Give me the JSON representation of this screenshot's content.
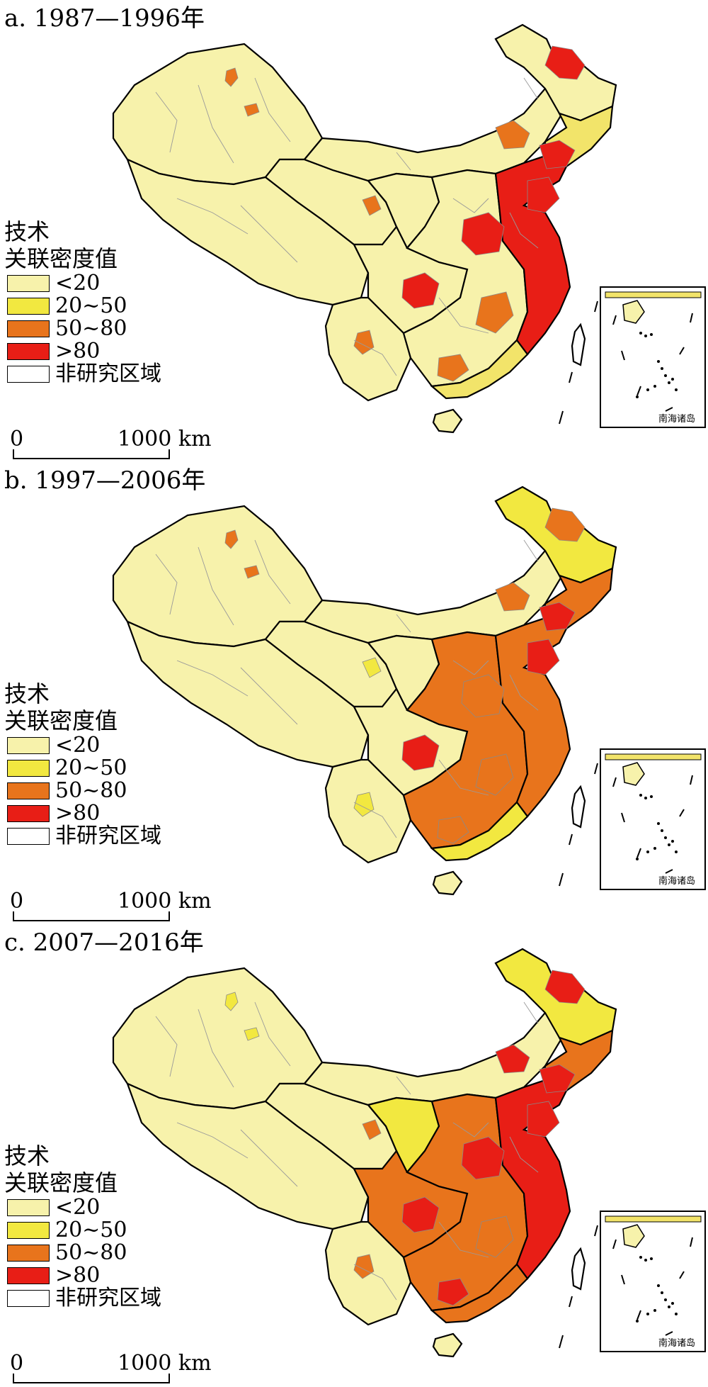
{
  "panels": [
    {
      "title": "a. 1987—1996年",
      "province_fill": {
        "xinjiang": "#f7f2ab",
        "tibet": "#f7f2ab",
        "qinghai": "#f7f2ab",
        "innermongolia": "#f7f2ab",
        "heilongjiang": "#f7f2ab",
        "gansu": "#f7f2ab",
        "sichuan": "#f7f2ab",
        "yunnan": "#f7f2ab",
        "southcentral": "#f7f2ab",
        "northeast": "#f2e46a",
        "eastcoast": "#e81e16",
        "guangdong": "#f2e46a",
        "hainan": "#f7f2ab",
        "taiwan": "#ffffff"
      },
      "hotspots": [
        {
          "fill": "#e8741c"
        },
        {
          "fill": "#e8741c"
        },
        {
          "fill": "#e8741c"
        },
        {
          "fill": "#e81e16"
        },
        {
          "fill": "#e81e16"
        },
        {
          "fill": "#e8741c"
        },
        {
          "fill": "#e81e16"
        },
        {
          "fill": "#e81e16"
        },
        {
          "fill": "#e8741c"
        },
        {
          "fill": "#e8741c"
        },
        {
          "fill": "#e81e16"
        },
        {
          "fill": "#e8741c"
        }
      ]
    },
    {
      "title": "b. 1997—2006年",
      "province_fill": {
        "xinjiang": "#f7f2ab",
        "tibet": "#f7f2ab",
        "qinghai": "#f7f2ab",
        "innermongolia": "#f7f2ab",
        "heilongjiang": "#f2e840",
        "gansu": "#f7f2ab",
        "sichuan": "#f7f2ab",
        "yunnan": "#f7f2ab",
        "southcentral": "#e8741c",
        "northeast": "#e8741c",
        "eastcoast": "#e8741c",
        "guangdong": "#f2e840",
        "hainan": "#f7f2ab",
        "taiwan": "#ffffff"
      },
      "hotspots": [
        {
          "fill": "#e8741c"
        },
        {
          "fill": "#e8741c"
        },
        {
          "fill": "#e8741c"
        },
        {
          "fill": "#e8741c"
        },
        {
          "fill": "#e81e16"
        },
        {
          "fill": "#f2e840"
        },
        {
          "fill": "#e81e16"
        },
        {
          "fill": "#e8741c"
        },
        {
          "fill": "#e8741c"
        },
        {
          "fill": "#f2e840"
        },
        {
          "fill": "#e81e16"
        },
        {
          "fill": "#e8741c"
        }
      ]
    },
    {
      "title": "c. 2007—2016年",
      "province_fill": {
        "xinjiang": "#f7f2ab",
        "tibet": "#f7f2ab",
        "qinghai": "#f7f2ab",
        "innermongolia": "#f7f2ab",
        "heilongjiang": "#f2e840",
        "gansu": "#f2e840",
        "sichuan": "#e8741c",
        "yunnan": "#f7f2ab",
        "southcentral": "#e8741c",
        "northeast": "#e8741c",
        "eastcoast": "#e81e16",
        "guangdong": "#e8741c",
        "hainan": "#f7f2ab",
        "taiwan": "#ffffff"
      },
      "hotspots": [
        {
          "fill": "#f2e840"
        },
        {
          "fill": "#f2e840"
        },
        {
          "fill": "#e81e16"
        },
        {
          "fill": "#e81e16"
        },
        {
          "fill": "#e81e16"
        },
        {
          "fill": "#e8741c"
        },
        {
          "fill": "#e81e16"
        },
        {
          "fill": "#e81e16"
        },
        {
          "fill": "#e8741c"
        },
        {
          "fill": "#e8741c"
        },
        {
          "fill": "#e81e16"
        },
        {
          "fill": "#e81e16"
        }
      ]
    }
  ],
  "legend": {
    "title_line1": "技术",
    "title_line2": "关联密度值",
    "items": [
      {
        "label": "<20",
        "color": "#f7f2ab"
      },
      {
        "label": "20~50",
        "color": "#f2e840"
      },
      {
        "label": "50~80",
        "color": "#e8741c"
      },
      {
        "label": ">80",
        "color": "#e81e16"
      },
      {
        "label": "非研究区域",
        "color": "#ffffff"
      }
    ]
  },
  "scalebar": {
    "zero": "0",
    "max": "1000 km"
  },
  "inset": {
    "label": "南海诸岛"
  }
}
